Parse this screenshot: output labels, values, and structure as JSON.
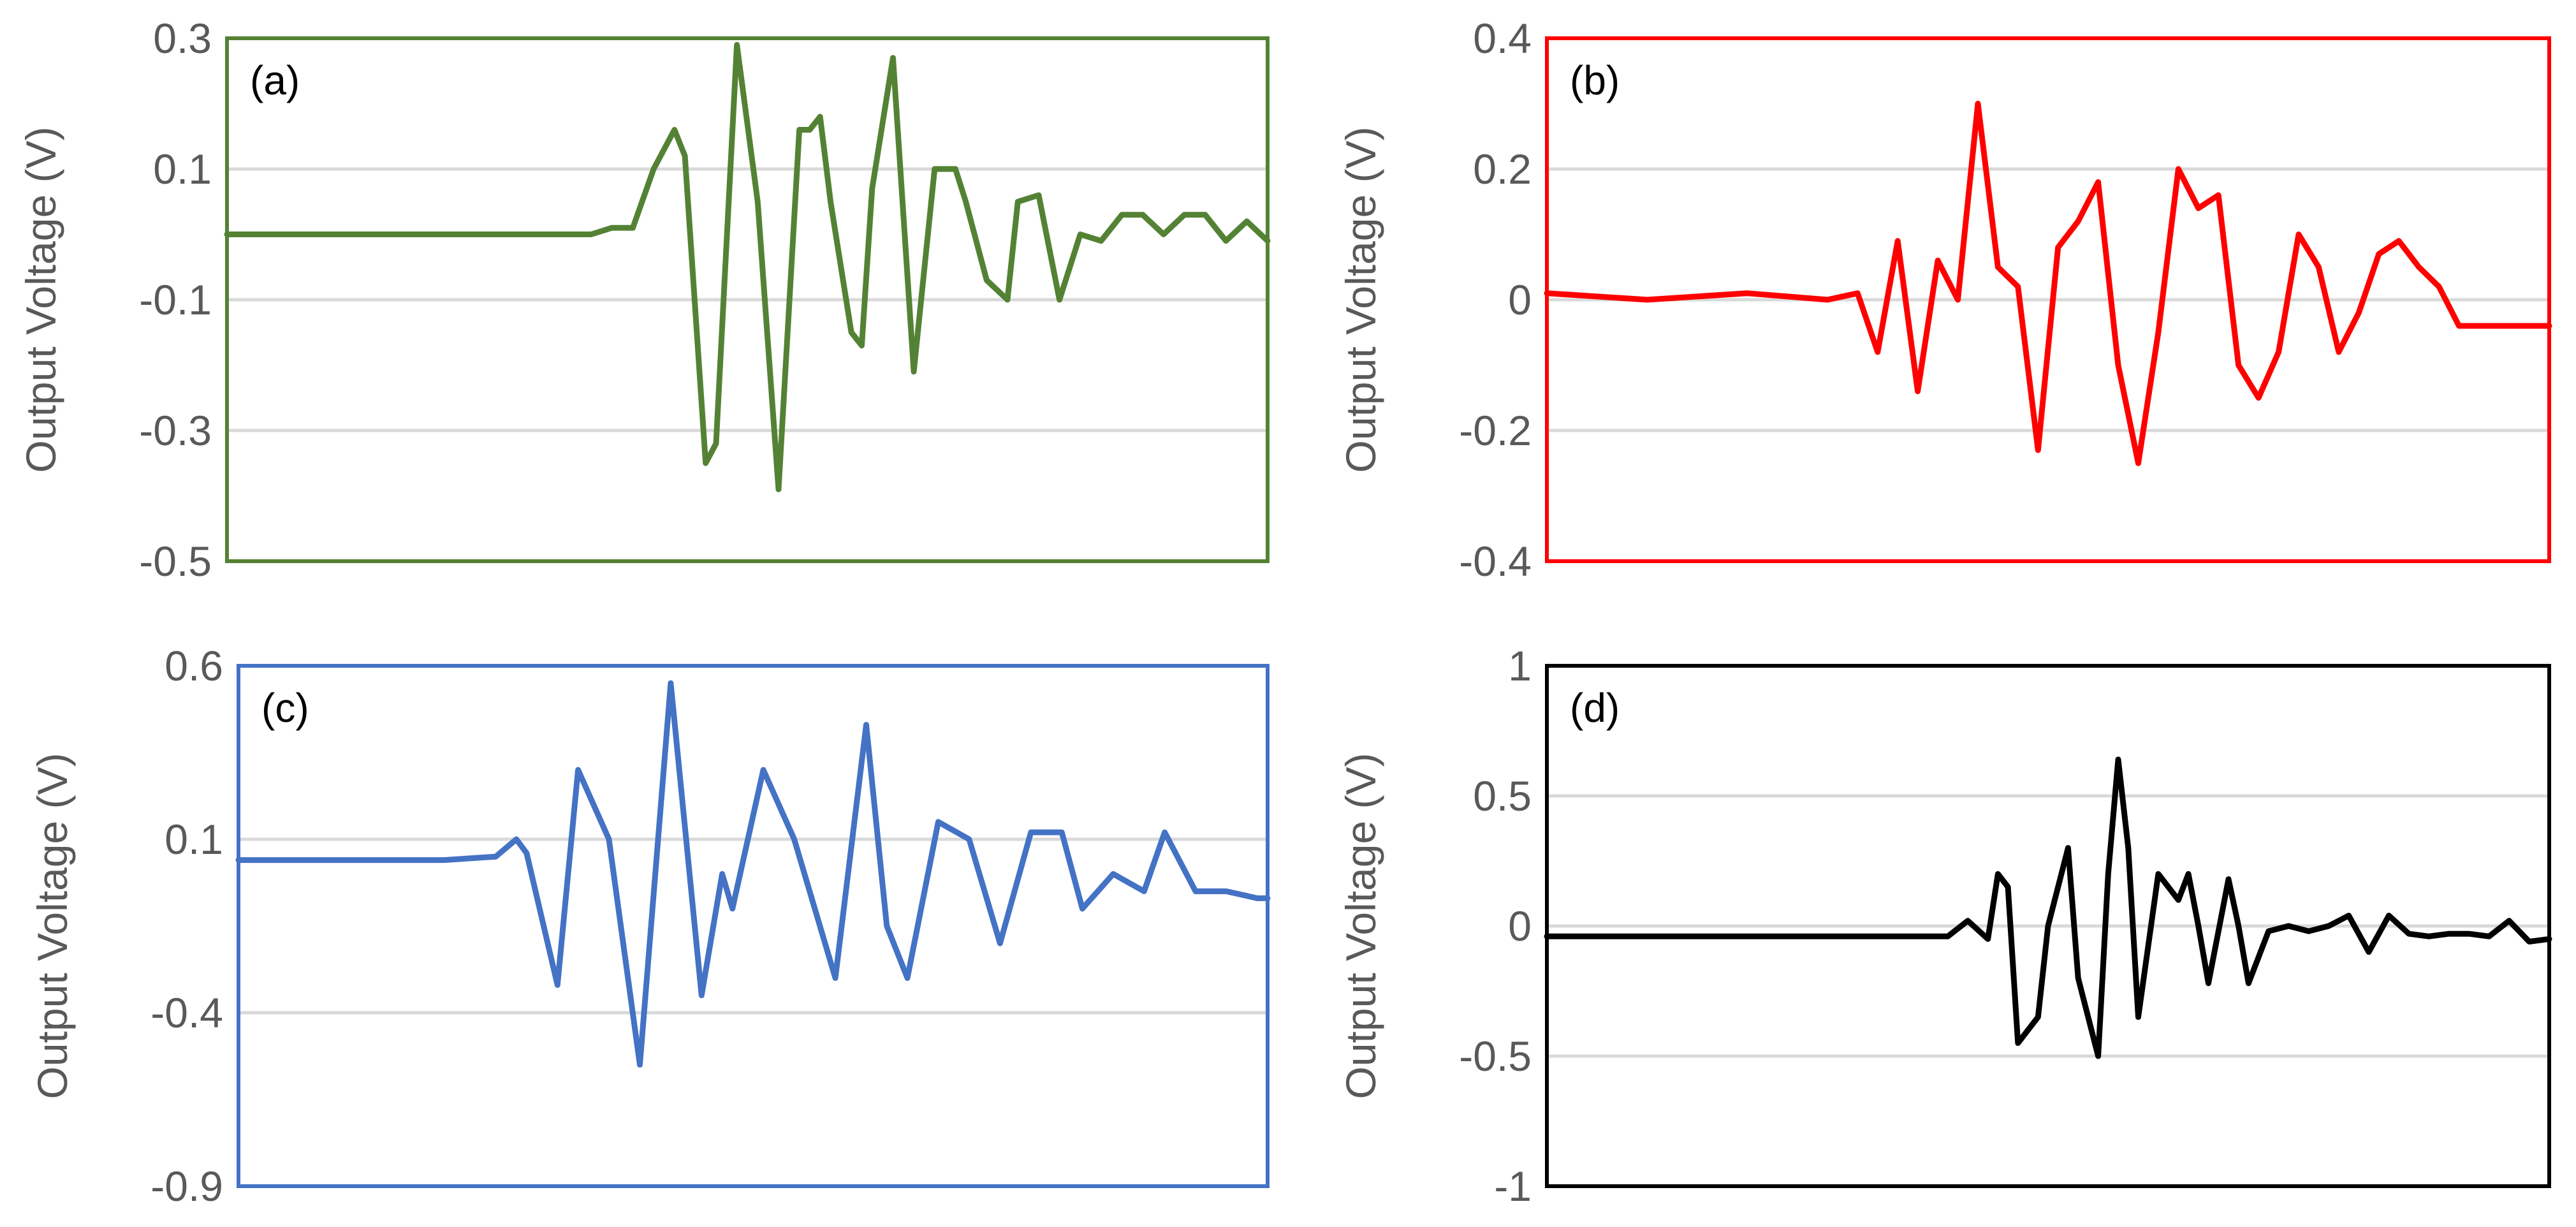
{
  "chart_data": [
    {
      "type": "line",
      "panel_label": "(a)",
      "title": "",
      "xlabel": "",
      "ylabel": "Output Voltage (V)",
      "ylim": [
        -0.5,
        0.3
      ],
      "yticks": [
        0.3,
        0.1,
        -0.1,
        -0.3,
        -0.5
      ],
      "ytick_labels": [
        "0.3",
        "0.1",
        "-0.1",
        "-0.3",
        "-0.5"
      ],
      "grid": true,
      "x": [
        0,
        10,
        20,
        30,
        35,
        37,
        39,
        41,
        43,
        44,
        46,
        47,
        49,
        51,
        53,
        55,
        56,
        57,
        58,
        60,
        61,
        62,
        64,
        66,
        68,
        70,
        71,
        73,
        75,
        76,
        78,
        80,
        82,
        84,
        86,
        88,
        90,
        92,
        94,
        96,
        98,
        100
      ],
      "series": [
        {
          "name": "Output Voltage",
          "color": "#548235",
          "values": [
            0.0,
            0.0,
            0.0,
            0.0,
            0.0,
            0.01,
            0.01,
            0.1,
            0.16,
            0.12,
            -0.35,
            -0.32,
            0.29,
            0.05,
            -0.39,
            0.16,
            0.16,
            0.18,
            0.05,
            -0.15,
            -0.17,
            0.07,
            0.27,
            -0.21,
            0.1,
            0.1,
            0.05,
            -0.07,
            -0.1,
            0.05,
            0.06,
            -0.1,
            0.0,
            -0.01,
            0.03,
            0.03,
            0.0,
            0.03,
            0.03,
            -0.01,
            0.02,
            -0.01
          ]
        }
      ],
      "frame_color": "#548235"
    },
    {
      "type": "line",
      "panel_label": "(b)",
      "title": "",
      "xlabel": "",
      "ylabel": "Output Voltage (V)",
      "ylim": [
        -0.4,
        0.4
      ],
      "yticks": [
        0.4,
        0.2,
        0,
        -0.2,
        -0.4
      ],
      "ytick_labels": [
        "0.4",
        "0.2",
        "0",
        "-0.2",
        "-0.4"
      ],
      "grid": true,
      "x": [
        0,
        10,
        20,
        28,
        31,
        33,
        35,
        37,
        39,
        41,
        43,
        45,
        47,
        49,
        51,
        53,
        55,
        57,
        59,
        61,
        63,
        65,
        67,
        69,
        71,
        73,
        75,
        77,
        79,
        81,
        83,
        85,
        87,
        89,
        91,
        93,
        95,
        97,
        100
      ],
      "series": [
        {
          "name": "Output Voltage",
          "color": "#ff0000",
          "values": [
            0.01,
            0.0,
            0.01,
            0.0,
            0.01,
            -0.08,
            0.09,
            -0.14,
            0.06,
            0.0,
            0.3,
            0.05,
            0.02,
            -0.23,
            0.08,
            0.12,
            0.18,
            -0.1,
            -0.25,
            -0.05,
            0.2,
            0.14,
            0.16,
            -0.1,
            -0.15,
            -0.08,
            0.1,
            0.05,
            -0.08,
            -0.02,
            0.07,
            0.09,
            0.05,
            0.02,
            -0.04,
            -0.04,
            -0.04,
            -0.04,
            -0.04
          ]
        }
      ],
      "frame_color": "#ff0000"
    },
    {
      "type": "line",
      "panel_label": "(c)",
      "title": "",
      "xlabel": "",
      "ylabel": "Output Voltage (V)",
      "ylim": [
        -0.9,
        0.6
      ],
      "yticks": [
        0.6,
        0.1,
        -0.4,
        -0.9
      ],
      "ytick_labels": [
        "0.6",
        "0.1",
        "-0.4",
        "-0.9"
      ],
      "grid": true,
      "x": [
        0,
        10,
        20,
        25,
        27,
        28,
        31,
        33,
        36,
        39,
        42,
        45,
        47,
        48,
        51,
        54,
        58,
        61,
        63,
        65,
        68,
        71,
        74,
        77,
        80,
        82,
        85,
        88,
        90,
        93,
        96,
        99,
        100
      ],
      "series": [
        {
          "name": "Output Voltage",
          "color": "#4472c4",
          "values": [
            0.04,
            0.04,
            0.04,
            0.05,
            0.1,
            0.06,
            -0.32,
            0.3,
            0.1,
            -0.55,
            0.55,
            -0.35,
            0.0,
            -0.1,
            0.3,
            0.1,
            -0.3,
            0.43,
            -0.15,
            -0.3,
            0.15,
            0.1,
            -0.2,
            0.12,
            0.12,
            -0.1,
            0.0,
            -0.05,
            0.12,
            -0.05,
            -0.05,
            -0.07,
            -0.07
          ]
        }
      ],
      "frame_color": "#4472c4"
    },
    {
      "type": "line",
      "panel_label": "(d)",
      "title": "",
      "xlabel": "",
      "ylabel": "Output Voltage (V)",
      "ylim": [
        -1,
        1
      ],
      "yticks": [
        1,
        0.5,
        0,
        -0.5,
        -1
      ],
      "ytick_labels": [
        "1",
        "0.5",
        "0",
        "-0.5",
        "-1"
      ],
      "grid": true,
      "x": [
        0,
        10,
        20,
        30,
        40,
        42,
        44,
        45,
        46,
        47,
        49,
        50,
        52,
        53,
        55,
        56,
        57,
        58,
        59,
        61,
        63,
        64,
        65,
        66,
        68,
        69,
        70,
        72,
        74,
        76,
        78,
        80,
        82,
        84,
        86,
        88,
        90,
        92,
        94,
        96,
        98,
        100
      ],
      "series": [
        {
          "name": "Output Voltage",
          "color": "#000000",
          "values": [
            -0.04,
            -0.04,
            -0.04,
            -0.04,
            -0.04,
            0.02,
            -0.05,
            0.2,
            0.15,
            -0.45,
            -0.35,
            0.0,
            0.3,
            -0.2,
            -0.5,
            0.2,
            0.64,
            0.3,
            -0.35,
            0.2,
            0.1,
            0.2,
            0.0,
            -0.22,
            0.18,
            0.0,
            -0.22,
            -0.02,
            0.0,
            -0.02,
            0.0,
            0.04,
            -0.1,
            0.04,
            -0.03,
            -0.04,
            -0.03,
            -0.03,
            -0.04,
            0.02,
            -0.06,
            -0.05
          ]
        }
      ],
      "frame_color": "#000000"
    }
  ]
}
